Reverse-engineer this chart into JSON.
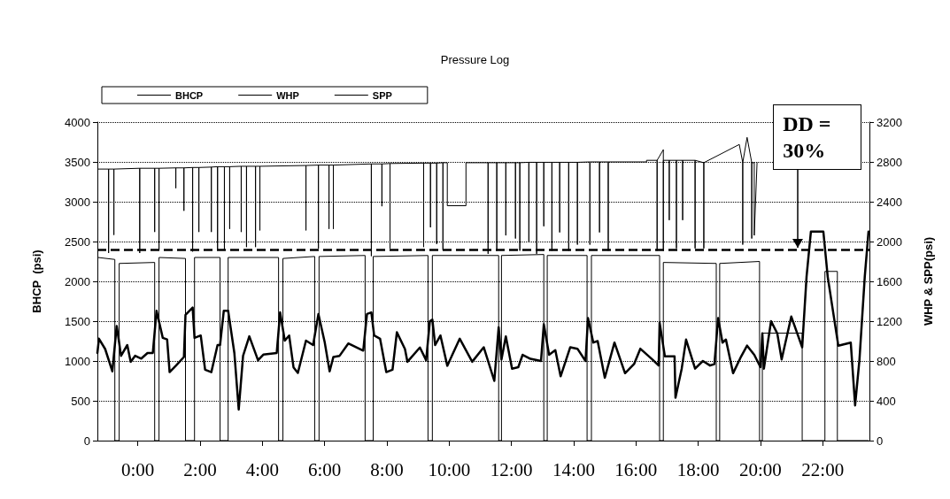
{
  "chart_data": {
    "type": "line",
    "title": "Pressure Log",
    "ylabel": "BHCP  (psi)",
    "y2label": "WHP & SPP(psi)",
    "xlim": [
      -1.3,
      23.5
    ],
    "xticks": [
      {
        "value": 0,
        "label": "0:00"
      },
      {
        "value": 2,
        "label": "2:00"
      },
      {
        "value": 4,
        "label": "4:00"
      },
      {
        "value": 6,
        "label": "6:00"
      },
      {
        "value": 8,
        "label": "8:00"
      },
      {
        "value": 10,
        "label": "10:00"
      },
      {
        "value": 12,
        "label": "12:00"
      },
      {
        "value": 14,
        "label": "14:00"
      },
      {
        "value": 16,
        "label": "16:00"
      },
      {
        "value": 18,
        "label": "18:00"
      },
      {
        "value": 20,
        "label": "20:00"
      },
      {
        "value": 22,
        "label": "22:00"
      }
    ],
    "ylim": [
      0,
      4000
    ],
    "yticks": [
      0,
      500,
      1000,
      1500,
      2000,
      2500,
      3000,
      3500,
      4000
    ],
    "y2lim": [
      0,
      3200
    ],
    "y2ticks": [
      0,
      400,
      800,
      1200,
      1600,
      2000,
      2400,
      2800,
      3200
    ],
    "grid": "y",
    "legend": "top left",
    "marker": "none",
    "ref_lines": [
      {
        "axis": "y",
        "value": 2400,
        "color": "#000000",
        "line_style": "dashed"
      }
    ],
    "annotations": [
      {
        "text": "DD = 30%",
        "x": 21.2,
        "y": 2400
      }
    ],
    "series": [
      {
        "name": "BHCP",
        "color": "#000000",
        "line_style": "solid",
        "x": [
          -1.28,
          -0.94,
          -0.94,
          -0.94,
          -0.77,
          -0.77,
          -0.77,
          0.06,
          0.06,
          0.06,
          0.54,
          0.54,
          0.54,
          0.68,
          0.68,
          0.68,
          1.22,
          1.22,
          1.22,
          1.48,
          1.48,
          1.48,
          1.76,
          1.76,
          1.76,
          1.96,
          1.96,
          1.96,
          2.36,
          2.36,
          2.36,
          2.56,
          2.56,
          2.56,
          2.78,
          2.78,
          2.78,
          2.95,
          2.95,
          2.95,
          3.32,
          3.32,
          3.32,
          3.49,
          3.49,
          3.49,
          3.78,
          3.78,
          3.78,
          3.92,
          3.92,
          3.92,
          5.4,
          5.4,
          5.4,
          5.8,
          5.8,
          5.8,
          6.14,
          6.14,
          6.14,
          6.28,
          6.28,
          6.28,
          7.5,
          7.5,
          7.5,
          7.84,
          7.84,
          7.84,
          8.1,
          8.1,
          8.1,
          9.18,
          9.18,
          9.18,
          9.4,
          9.4,
          9.4,
          9.6,
          9.6,
          9.6,
          9.8,
          9.8,
          9.8,
          9.94,
          9.94,
          10.54,
          10.54,
          11.25,
          11.25,
          11.25,
          11.53,
          11.53,
          11.53,
          11.82,
          11.82,
          11.82,
          12.13,
          12.13,
          12.13,
          12.27,
          12.27,
          12.27,
          12.56,
          12.56,
          12.56,
          12.81,
          12.81,
          12.81,
          13.04,
          13.04,
          13.04,
          13.3,
          13.3,
          13.3,
          13.55,
          13.55,
          13.55,
          13.84,
          13.84,
          13.84,
          14.12,
          14.12,
          14.12,
          14.52,
          14.52,
          14.52,
          14.83,
          14.83,
          14.83,
          15.11,
          15.11,
          15.11,
          16.34,
          16.34,
          16.68,
          16.68,
          16.68,
          16.88,
          16.88,
          16.88,
          17.07,
          17.07,
          17.07,
          17.3,
          17.3,
          17.3,
          17.5,
          17.5,
          17.5,
          17.9,
          17.9,
          17.9,
          18.18,
          18.18,
          18.18,
          19.32,
          19.43,
          19.43,
          19.43,
          19.57,
          19.72,
          19.72,
          19.72,
          19.8,
          19.8,
          19.89
        ],
        "values": [
          3410,
          3410,
          2356,
          3410,
          3410,
          2583,
          3410,
          3420,
          2356,
          3420,
          3420,
          2620,
          3420,
          3420,
          2393,
          3420,
          3425,
          3170,
          3425,
          3425,
          2886,
          3425,
          3430,
          2374,
          3430,
          3430,
          2620,
          3430,
          3435,
          2620,
          3435,
          3440,
          2393,
          3440,
          3440,
          2393,
          3440,
          3440,
          2659,
          3440,
          3445,
          2620,
          3445,
          3445,
          2431,
          3445,
          3445,
          2431,
          3445,
          3445,
          2640,
          3445,
          3455,
          2640,
          3455,
          3460,
          2412,
          3460,
          3460,
          2659,
          3460,
          3460,
          2659,
          3460,
          3475,
          2317,
          3475,
          3475,
          2943,
          3475,
          3480,
          2412,
          3480,
          3485,
          2431,
          3485,
          3485,
          2678,
          3485,
          3485,
          2469,
          3485,
          3490,
          2393,
          3490,
          3490,
          2950,
          2950,
          3490,
          3490,
          2346,
          3490,
          3490,
          2385,
          3490,
          3490,
          2577,
          3490,
          3490,
          2538,
          3490,
          3490,
          2385,
          3490,
          3495,
          2500,
          3495,
          3495,
          2346,
          3495,
          3495,
          2692,
          3495,
          3495,
          2385,
          3495,
          3495,
          2615,
          3495,
          3495,
          2385,
          3495,
          3495,
          2461,
          3495,
          3500,
          2461,
          3500,
          3500,
          2615,
          3500,
          3500,
          2385,
          3500,
          3500,
          3520,
          3520,
          2385,
          3520,
          3654,
          2385,
          3520,
          3520,
          2769,
          3520,
          3520,
          2414,
          3520,
          3520,
          2769,
          3520,
          3520,
          2414,
          3520,
          3490,
          2414,
          3490,
          3719,
          3490,
          2461,
          3490,
          3808,
          3490,
          2538,
          3490,
          3490,
          2577,
          3490
        ]
      },
      {
        "name": "WHP",
        "color": "#000000",
        "line_style": "solid",
        "axis": "y2",
        "x": [
          -1.3,
          -1.25,
          -1.05,
          -0.82,
          -0.68,
          -0.54,
          -0.34,
          -0.23,
          -0.09,
          0.11,
          0.31,
          0.48,
          0.6,
          0.8,
          0.94,
          1.02,
          1.22,
          1.48,
          1.53,
          1.76,
          1.82,
          2.02,
          2.16,
          2.36,
          2.56,
          2.64,
          2.76,
          2.9,
          3.1,
          3.24,
          3.38,
          3.58,
          3.86,
          4.03,
          4.46,
          4.57,
          4.72,
          4.86,
          5.0,
          5.14,
          5.4,
          5.63,
          5.8,
          6.0,
          6.16,
          6.28,
          6.48,
          6.76,
          7.24,
          7.36,
          7.5,
          7.59,
          7.78,
          7.98,
          8.18,
          8.32,
          8.58,
          8.66,
          9.06,
          9.26,
          9.38,
          9.46,
          9.55,
          9.72,
          9.94,
          10.34,
          10.74,
          11.11,
          11.45,
          11.59,
          11.68,
          11.82,
          12.02,
          12.22,
          12.36,
          12.61,
          12.95,
          13.04,
          13.21,
          13.41,
          13.58,
          13.89,
          14.12,
          14.38,
          14.46,
          14.63,
          14.77,
          15.0,
          15.31,
          15.65,
          15.94,
          16.14,
          16.53,
          16.73,
          16.76,
          16.93,
          17.24,
          17.27,
          17.47,
          17.61,
          17.9,
          18.15,
          18.38,
          18.52,
          18.64,
          18.78,
          18.89,
          19.12,
          19.38,
          19.57,
          19.8,
          20.0,
          20.06,
          20.11,
          20.34,
          20.54,
          20.68,
          20.99,
          21.34,
          21.48,
          21.62,
          22.02,
          22.16,
          22.5,
          22.9,
          23.04,
          23.18,
          23.35,
          23.47
        ],
        "values": [
          880,
          1024,
          920,
          696,
          1152,
          852,
          960,
          792,
          852,
          824,
          880,
          880,
          1304,
          1032,
          1016,
          688,
          752,
          840,
          1264,
          1336,
          1032,
          1056,
          712,
          688,
          960,
          960,
          1304,
          1304,
          880,
          312,
          852,
          1048,
          808,
          864,
          880,
          1288,
          1004,
          1056,
          736,
          680,
          1004,
          960,
          1272,
          992,
          696,
          840,
          852,
          976,
          904,
          1272,
          1288,
          1056,
          1024,
          688,
          712,
          1088,
          920,
          792,
          936,
          808,
          1200,
          1216,
          960,
          1056,
          752,
          1024,
          792,
          938,
          600,
          1138,
          815,
          1046,
          723,
          738,
          862,
          822,
          800,
          1169,
          862,
          908,
          646,
          938,
          923,
          800,
          1231,
          985,
          1000,
          631,
          985,
          677,
          769,
          923,
          815,
          754,
          1185,
          846,
          846,
          431,
          723,
          1015,
          723,
          800,
          754,
          769,
          1231,
          985,
          1015,
          677,
          846,
          954,
          862,
          738,
          1077,
          723,
          1200,
          1077,
          815,
          1246,
          938,
          1646,
          2100,
          2100,
          1646,
          954,
          985,
          354,
          815,
          1646,
          2100
        ]
      },
      {
        "name": "SPP",
        "color": "#000000",
        "line_style": "solid",
        "axis": "y2",
        "x": [
          -1.28,
          -0.74,
          -0.74,
          -0.6,
          -0.6,
          0.54,
          0.54,
          0.68,
          0.68,
          1.53,
          1.53,
          1.82,
          1.82,
          2.64,
          2.64,
          2.9,
          2.9,
          4.52,
          4.52,
          4.66,
          4.66,
          5.68,
          5.68,
          5.82,
          5.82,
          7.3,
          7.3,
          7.56,
          7.56,
          9.32,
          9.32,
          9.46,
          9.46,
          11.59,
          11.59,
          11.68,
          11.68,
          13.04,
          13.04,
          13.15,
          13.15,
          14.43,
          14.43,
          14.57,
          14.57,
          16.76,
          16.76,
          16.88,
          16.88,
          18.58,
          18.58,
          18.69,
          18.69,
          19.97,
          19.97,
          20.06,
          20.06,
          21.34,
          21.34,
          22.07,
          22.07,
          22.47,
          22.47,
          23.47
        ],
        "values": [
          1840,
          1820,
          0,
          0,
          1780,
          1790,
          0,
          0,
          1840,
          1830,
          0,
          0,
          1840,
          1840,
          0,
          0,
          1840,
          1840,
          0,
          0,
          1830,
          1850,
          0,
          0,
          1850,
          1860,
          0,
          0,
          1850,
          1860,
          0,
          0,
          1860,
          1860,
          0,
          0,
          1860,
          1870,
          0,
          0,
          1860,
          1860,
          0,
          0,
          1860,
          1860,
          0,
          0,
          1790,
          1780,
          0,
          0,
          1780,
          1800,
          0,
          0,
          1080,
          1080,
          0,
          0,
          1700,
          1700,
          0,
          0
        ]
      }
    ]
  }
}
